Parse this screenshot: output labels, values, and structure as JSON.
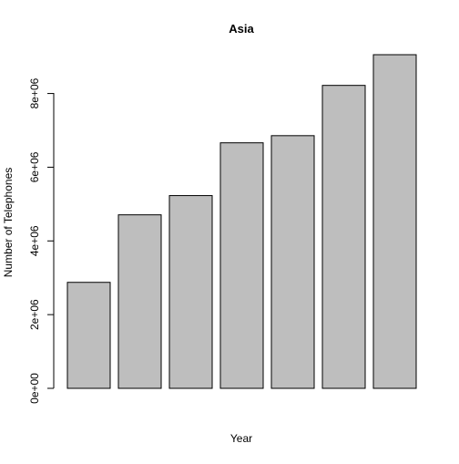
{
  "chart_data": {
    "type": "bar",
    "title": "Asia",
    "xlabel": "Year",
    "ylabel": "Number of Telephones",
    "categories": [
      "",
      "",
      "",
      "",
      "",
      "",
      ""
    ],
    "values": [
      2876000,
      4708000,
      5230000,
      6662000,
      6856000,
      8220000,
      9053000
    ],
    "ylim": [
      0,
      9053000
    ],
    "yticks": [
      0,
      2000000,
      4000000,
      6000000,
      8000000
    ],
    "ytick_labels": [
      "0e+00",
      "2e+06",
      "4e+06",
      "6e+06",
      "8e+06"
    ],
    "bar_color": "#BEBEBE",
    "grid": false,
    "legend": "none"
  }
}
